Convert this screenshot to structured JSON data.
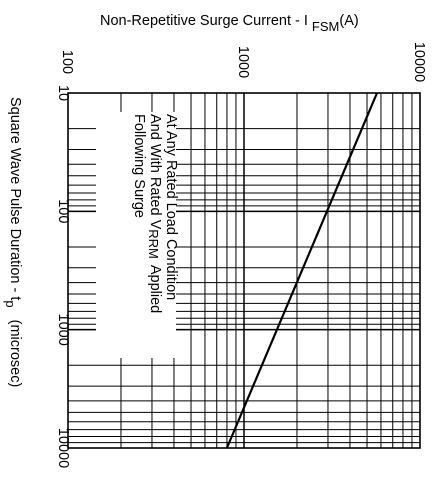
{
  "chart_data": {
    "type": "line",
    "title": "Non-Repetitive Surge Current - I FSM(A)",
    "title_main": "Non-Repetitive Surge Current - I",
    "title_sub": "FSM",
    "title_unit": "(A)",
    "ylabel": "Square Wave Pulse Duration - t",
    "ylabel_sub": "p",
    "ylabel_unit": "(microsec)",
    "x_scale": "log",
    "y_scale": "log",
    "xlim": [
      100,
      10000
    ],
    "ylim": [
      10,
      10000
    ],
    "x_ticks": [
      "100",
      "1000",
      "10000"
    ],
    "y_ticks": [
      "10",
      "100",
      "1000",
      "10000"
    ],
    "grid": true,
    "annotation": [
      "At Any Rated Load Condition",
      "And With Rated V",
      "RRM",
      "Applied",
      "Following Surge"
    ],
    "series": [
      {
        "x": [
          5700,
          800
        ],
        "y": [
          10,
          10000
        ]
      }
    ]
  }
}
